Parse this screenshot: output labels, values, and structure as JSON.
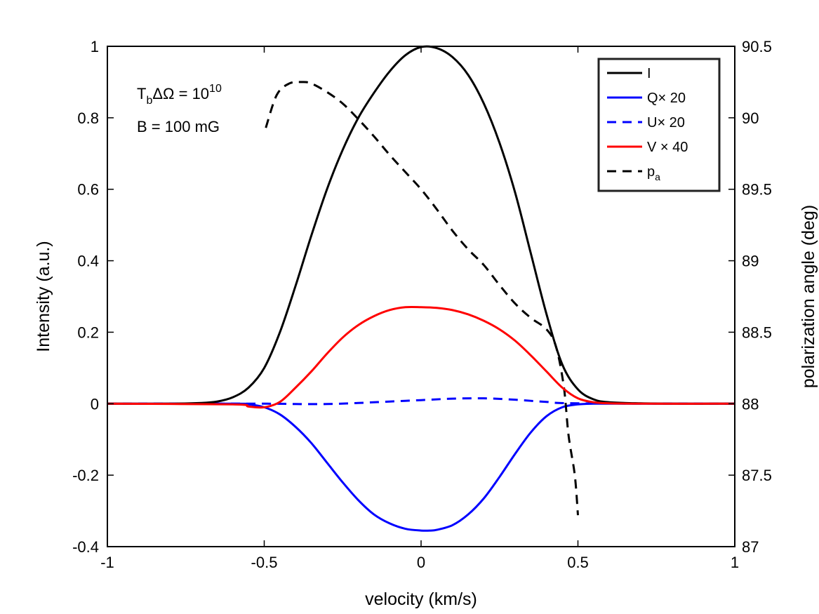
{
  "chart_data": {
    "type": "line",
    "xlabel": "velocity (km/s)",
    "ylabel": "Intensity (a.u.)",
    "y2label": "polarization angle (deg)",
    "xlim": [
      -1,
      1
    ],
    "ylim": [
      -0.4,
      1
    ],
    "y2lim": [
      87,
      90.5
    ],
    "x_ticks": [
      -1,
      -0.5,
      0,
      0.5,
      1
    ],
    "x_tick_labels": [
      "-1",
      "-0.5",
      "0",
      "0.5",
      "1"
    ],
    "y_ticks": [
      -0.4,
      -0.2,
      0,
      0.2,
      0.4,
      0.6,
      0.8,
      1
    ],
    "y_tick_labels": [
      "-0.4",
      "-0.2",
      "0",
      "0.2",
      "0.4",
      "0.6",
      "0.8",
      "1"
    ],
    "y2_ticks": [
      87,
      87.5,
      88,
      88.5,
      89,
      89.5,
      90,
      90.5
    ],
    "y2_tick_labels": [
      "87",
      "87.5",
      "88",
      "88.5",
      "89",
      "89.5",
      "90",
      "90.5"
    ],
    "annotation": {
      "line1_T": "T",
      "line1_sub": "b",
      "line1_mid": "ΔΩ = 10",
      "line1_sup": "10",
      "line2": "B = 100 mG"
    },
    "legend": [
      {
        "label": "I",
        "color": "#000000",
        "dash": false
      },
      {
        "label": "Q× 20",
        "color": "#0000ff",
        "dash": false
      },
      {
        "label": "U× 20",
        "color": "#0000ff",
        "dash": true
      },
      {
        "label": "V × 40",
        "color": "#ff0000",
        "dash": false
      },
      {
        "label": "p",
        "sub": "a",
        "color": "#000000",
        "dash": true
      }
    ],
    "series": [
      {
        "name": "I",
        "color": "#000000",
        "dash": false,
        "axis": "left",
        "x": [
          -1,
          -0.8,
          -0.7,
          -0.65,
          -0.6,
          -0.55,
          -0.5,
          -0.45,
          -0.4,
          -0.35,
          -0.3,
          -0.25,
          -0.2,
          -0.15,
          -0.1,
          -0.05,
          0,
          0.05,
          0.1,
          0.15,
          0.2,
          0.25,
          0.3,
          0.35,
          0.4,
          0.45,
          0.5,
          0.55,
          0.6,
          0.7,
          0.8,
          1
        ],
        "y": [
          0,
          0,
          0.002,
          0.006,
          0.018,
          0.045,
          0.1,
          0.2,
          0.33,
          0.47,
          0.6,
          0.71,
          0.8,
          0.87,
          0.93,
          0.975,
          0.998,
          0.995,
          0.97,
          0.92,
          0.84,
          0.73,
          0.59,
          0.42,
          0.25,
          0.11,
          0.04,
          0.012,
          0.004,
          0.001,
          0,
          0
        ]
      },
      {
        "name": "Q× 20",
        "color": "#0000ff",
        "dash": false,
        "axis": "left",
        "x": [
          -1,
          -0.6,
          -0.55,
          -0.5,
          -0.45,
          -0.4,
          -0.35,
          -0.3,
          -0.25,
          -0.2,
          -0.15,
          -0.1,
          -0.05,
          0,
          0.03,
          0.05,
          0.1,
          0.15,
          0.2,
          0.25,
          0.3,
          0.35,
          0.4,
          0.45,
          0.5,
          0.55,
          0.6,
          1
        ],
        "y": [
          0,
          0,
          -0.002,
          -0.01,
          -0.03,
          -0.065,
          -0.11,
          -0.165,
          -0.22,
          -0.27,
          -0.31,
          -0.335,
          -0.35,
          -0.355,
          -0.355,
          -0.353,
          -0.34,
          -0.31,
          -0.265,
          -0.205,
          -0.14,
          -0.08,
          -0.035,
          -0.01,
          -0.002,
          0,
          0,
          0
        ]
      },
      {
        "name": "U× 20",
        "color": "#0000ff",
        "dash": true,
        "axis": "left",
        "x": [
          -1,
          -0.5,
          -0.4,
          -0.3,
          -0.2,
          -0.1,
          0,
          0.1,
          0.2,
          0.3,
          0.4,
          0.5,
          1
        ],
        "y": [
          0,
          0,
          -0.001,
          -0.001,
          0.002,
          0.006,
          0.01,
          0.014,
          0.015,
          0.011,
          0.005,
          0.001,
          0
        ]
      },
      {
        "name": "V × 40",
        "color": "#ff0000",
        "dash": false,
        "axis": "left",
        "x": [
          -1,
          -0.6,
          -0.55,
          -0.5,
          -0.45,
          -0.4,
          -0.35,
          -0.3,
          -0.25,
          -0.2,
          -0.15,
          -0.1,
          -0.05,
          0,
          0.05,
          0.1,
          0.15,
          0.2,
          0.25,
          0.3,
          0.35,
          0.4,
          0.45,
          0.5,
          0.55,
          0.6,
          0.7,
          1
        ],
        "y": [
          0,
          -0.002,
          -0.008,
          -0.01,
          0.005,
          0.045,
          0.09,
          0.14,
          0.185,
          0.22,
          0.245,
          0.262,
          0.27,
          0.27,
          0.268,
          0.262,
          0.25,
          0.232,
          0.208,
          0.176,
          0.135,
          0.09,
          0.045,
          0.015,
          0.004,
          0.001,
          0,
          0
        ]
      },
      {
        "name": "p_a",
        "color": "#000000",
        "dash": true,
        "axis": "right",
        "x": [
          -0.495,
          -0.46,
          -0.42,
          -0.38,
          -0.35,
          -0.3,
          -0.25,
          -0.2,
          -0.15,
          -0.1,
          -0.05,
          0,
          0.05,
          0.1,
          0.15,
          0.2,
          0.25,
          0.3,
          0.35,
          0.4,
          0.43,
          0.455,
          0.47,
          0.49,
          0.5
        ],
        "y": [
          89.93,
          90.16,
          90.24,
          90.25,
          90.24,
          90.18,
          90.1,
          89.99,
          89.87,
          89.74,
          89.62,
          89.5,
          89.36,
          89.21,
          89.08,
          88.97,
          88.83,
          88.7,
          88.6,
          88.52,
          88.4,
          88.12,
          87.78,
          87.5,
          87.22
        ]
      }
    ]
  }
}
